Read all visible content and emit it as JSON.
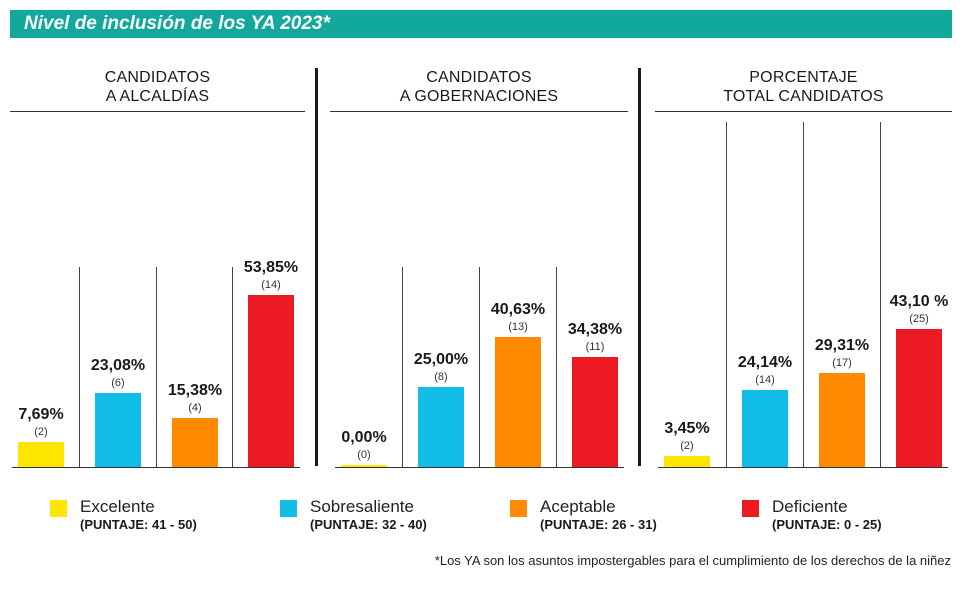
{
  "title": "Nivel de inclusión de los YA 2023*",
  "footnote": "*Los YA son los asuntos impostergables para el cumplimiento de los derechos de la niñez",
  "colors": {
    "Excelente": "#ffe600",
    "Sobresaliente": "#12bde8",
    "Aceptable": "#ff8a00",
    "Deficiente": "#ec1b23",
    "title_bar": "#12a89b"
  },
  "legend": [
    {
      "name": "Excelente",
      "range": "(PUNTAJE: 41 - 50)",
      "color": "#ffe600"
    },
    {
      "name": "Sobresaliente",
      "range": "(PUNTAJE: 32 - 40)",
      "color": "#12bde8"
    },
    {
      "name": "Aceptable",
      "range": "(PUNTAJE: 26 - 31)",
      "color": "#ff8a00"
    },
    {
      "name": "Deficiente",
      "range": "(PUNTAJE: 0 - 25)",
      "color": "#ec1b23"
    }
  ],
  "chart_data": [
    {
      "type": "bar",
      "title_line1": "CANDIDATOS",
      "title_line2": "A ALCALDÍAS",
      "categories": [
        "Excelente",
        "Sobresaliente",
        "Aceptable",
        "Deficiente"
      ],
      "values": [
        7.69,
        23.08,
        15.38,
        53.85
      ],
      "value_labels": [
        "7,69%",
        "23,08%",
        "15,38%",
        "53,85%"
      ],
      "counts": [
        "(2)",
        "(6)",
        "(4)",
        "(14)"
      ]
    },
    {
      "type": "bar",
      "title_line1": "CANDIDATOS",
      "title_line2": "A GOBERNACIONES",
      "categories": [
        "Excelente",
        "Sobresaliente",
        "Aceptable",
        "Deficiente"
      ],
      "values": [
        0.0,
        25.0,
        40.63,
        34.38
      ],
      "value_labels": [
        "0,00%",
        "25,00%",
        "40,63%",
        "34,38%"
      ],
      "counts": [
        "(0)",
        "(8)",
        "(13)",
        "(11)"
      ]
    },
    {
      "type": "bar",
      "title_line1": "PORCENTAJE",
      "title_line2": "TOTAL CANDIDATOS",
      "categories": [
        "Excelente",
        "Sobresaliente",
        "Aceptable",
        "Deficiente"
      ],
      "values": [
        3.45,
        24.14,
        29.31,
        43.1
      ],
      "value_labels": [
        "3,45%",
        "24,14%",
        "29,31%",
        "43,10 %"
      ],
      "counts": [
        "(2)",
        "(14)",
        "(17)",
        "(25)"
      ]
    }
  ]
}
